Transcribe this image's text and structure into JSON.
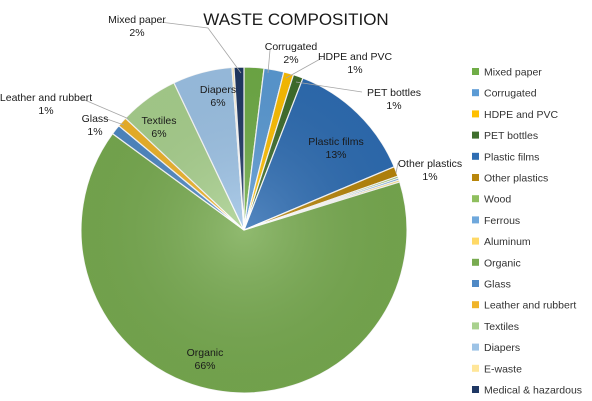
{
  "chart_data": {
    "type": "pie",
    "title": "WASTE COMPOSITION",
    "legend_position": "right",
    "slices": [
      {
        "name": "Mixed paper",
        "value": 2,
        "label": "2%",
        "color": "#70ad47"
      },
      {
        "name": "Corrugated",
        "value": 2,
        "label": "2%",
        "color": "#5b9bd5"
      },
      {
        "name": "HDPE and PVC",
        "value": 1,
        "label": "1%",
        "color": "#ffc000"
      },
      {
        "name": "PET bottles",
        "value": 1,
        "label": "1%",
        "color": "#3f6e2c"
      },
      {
        "name": "Plastic films",
        "value": 13,
        "label": "13%",
        "color": "#2e6db3"
      },
      {
        "name": "Other plastics",
        "value": 1,
        "label": "1%",
        "color": "#b8860b"
      },
      {
        "name": "Wood",
        "value": 0.2,
        "label": "",
        "color": "#8fbf5e"
      },
      {
        "name": "Ferrous",
        "value": 0.2,
        "label": "",
        "color": "#6fa8dc"
      },
      {
        "name": "Aluminum",
        "value": 0.2,
        "label": "",
        "color": "#ffd966"
      },
      {
        "name": "Organic",
        "value": 66,
        "label": "66%",
        "color": "#78ab50"
      },
      {
        "name": "Glass",
        "value": 1,
        "label": "1%",
        "color": "#4f89c5"
      },
      {
        "name": "Leather and rubbert",
        "value": 1,
        "label": "1%",
        "color": "#f0b429"
      },
      {
        "name": "Textiles",
        "value": 6,
        "label": "6%",
        "color": "#a9d18e"
      },
      {
        "name": "Diapers",
        "value": 6,
        "label": "6%",
        "color": "#9dc3e6"
      },
      {
        "name": "E-waste",
        "value": 0.2,
        "label": "",
        "color": "#ffe699"
      },
      {
        "name": "Medical & hazardous",
        "value": 1,
        "label": "",
        "color": "#1f3864"
      }
    ]
  }
}
